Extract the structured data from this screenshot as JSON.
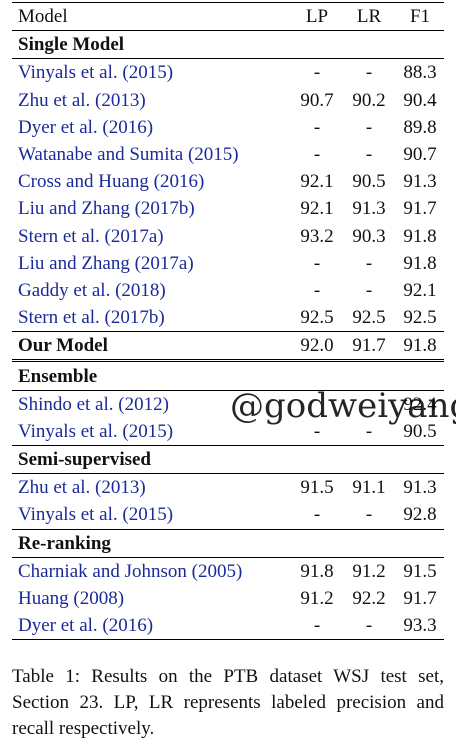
{
  "table": {
    "headers": [
      "Model",
      "LP",
      "LR",
      "F1"
    ],
    "sections": [
      {
        "title": "Single Model",
        "rows": [
          {
            "model": "Vinyals et al. (2015)",
            "lp": "-",
            "lr": "-",
            "f1": "88.3"
          },
          {
            "model": "Zhu et al. (2013)",
            "lp": "90.7",
            "lr": "90.2",
            "f1": "90.4"
          },
          {
            "model": "Dyer et al. (2016)",
            "lp": "-",
            "lr": "-",
            "f1": "89.8"
          },
          {
            "model": "Watanabe and Sumita (2015)",
            "lp": "-",
            "lr": "-",
            "f1": "90.7"
          },
          {
            "model": "Cross and Huang (2016)",
            "lp": "92.1",
            "lr": "90.5",
            "f1": "91.3"
          },
          {
            "model": "Liu and Zhang (2017b)",
            "lp": "92.1",
            "lr": "91.3",
            "f1": "91.7"
          },
          {
            "model": "Stern et al. (2017a)",
            "lp": "93.2",
            "lr": "90.3",
            "f1": "91.8"
          },
          {
            "model": "Liu and Zhang (2017a)",
            "lp": "-",
            "lr": "-",
            "f1": "91.8"
          },
          {
            "model": "Gaddy et al. (2018)",
            "lp": "-",
            "lr": "-",
            "f1": "92.1"
          },
          {
            "model": "Stern et al. (2017b)",
            "lp": "92.5",
            "lr": "92.5",
            "f1": "92.5"
          }
        ]
      }
    ],
    "our_model": {
      "model": "Our Model",
      "lp": "92.0",
      "lr": "91.7",
      "f1": "91.8"
    },
    "ensemble": {
      "title": "Ensemble",
      "rows": [
        {
          "model": "Shindo et al. (2012)",
          "lp": "",
          "lr": "",
          "f1": "92.4"
        },
        {
          "model": "Vinyals et al. (2015)",
          "lp": "-",
          "lr": "-",
          "f1": "90.5"
        }
      ]
    },
    "semi": {
      "title": "Semi-supervised",
      "rows": [
        {
          "model": "Zhu et al. (2013)",
          "lp": "91.5",
          "lr": "91.1",
          "f1": "91.3"
        },
        {
          "model": "Vinyals et al. (2015)",
          "lp": "-",
          "lr": "-",
          "f1": "92.8"
        }
      ]
    },
    "rerank": {
      "title": "Re-ranking",
      "rows": [
        {
          "model": "Charniak and Johnson (2005)",
          "lp": "91.8",
          "lr": "91.2",
          "f1": "91.5"
        },
        {
          "model": "Huang (2008)",
          "lp": "91.2",
          "lr": "92.2",
          "f1": "91.7"
        },
        {
          "model": "Dyer et al. (2016)",
          "lp": "-",
          "lr": "-",
          "f1": "93.3"
        }
      ]
    }
  },
  "watermark": "@godweiyang",
  "caption": "Table 1: Results on the PTB dataset WSJ test set, Section 23. LP, LR represents labeled precision and recall respectively."
}
